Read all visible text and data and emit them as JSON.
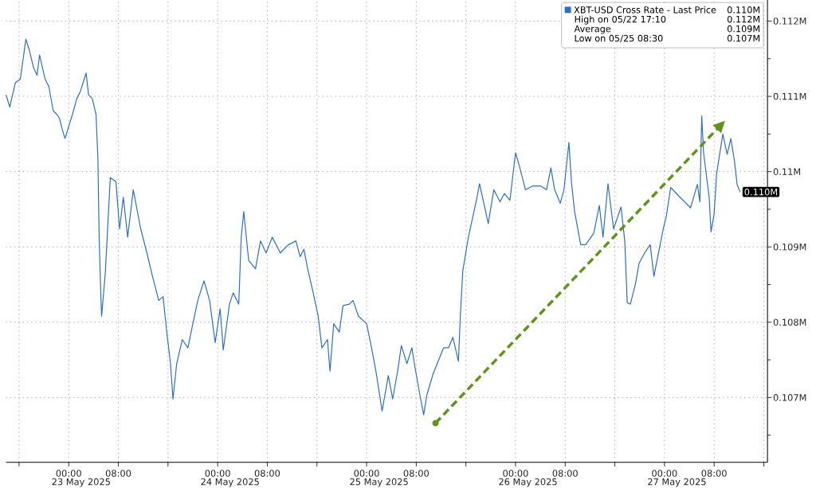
{
  "chart_data": {
    "type": "line",
    "series": [
      {
        "name": "XBT-USD Cross Rate - Last Price",
        "color": "#2a70c8",
        "x": [
          "2025-05-22T13:54",
          "2025-05-22T14:30",
          "2025-05-22T15:24",
          "2025-05-22T16:12",
          "2025-05-22T17:06",
          "2025-05-22T17:42",
          "2025-05-22T18:18",
          "2025-05-22T18:54",
          "2025-05-22T19:18",
          "2025-05-22T20:12",
          "2025-05-22T20:48",
          "2025-05-22T21:30",
          "2025-05-22T22:06",
          "2025-05-22T22:30",
          "2025-05-22T23:00",
          "2025-05-22T23:24",
          "2025-05-23T00:00",
          "2025-05-23T00:36",
          "2025-05-23T01:18",
          "2025-05-23T01:54",
          "2025-05-23T02:48",
          "2025-05-23T03:12",
          "2025-05-23T03:48",
          "2025-05-23T04:24",
          "2025-05-23T04:42",
          "2025-05-23T04:54",
          "2025-05-23T05:12",
          "2025-05-23T05:18",
          "2025-05-23T05:54",
          "2025-05-23T06:42",
          "2025-05-23T07:36",
          "2025-05-23T08:12",
          "2025-05-23T08:48",
          "2025-05-23T09:30",
          "2025-05-23T10:24",
          "2025-05-23T11:36",
          "2025-05-23T12:36",
          "2025-05-23T13:30",
          "2025-05-23T14:30",
          "2025-05-23T15:12",
          "2025-05-23T15:48",
          "2025-05-23T16:24",
          "2025-05-23T16:48",
          "2025-05-23T17:24",
          "2025-05-23T18:18",
          "2025-05-23T19:12",
          "2025-05-23T20:00",
          "2025-05-23T20:48",
          "2025-05-23T21:48",
          "2025-05-23T22:42",
          "2025-05-23T23:36",
          "2025-05-24T00:24",
          "2025-05-24T00:54",
          "2025-05-24T01:54",
          "2025-05-24T02:30",
          "2025-05-24T03:24",
          "2025-05-24T03:48",
          "2025-05-24T04:12",
          "2025-05-24T05:00",
          "2025-05-24T06:06",
          "2025-05-24T06:54",
          "2025-05-24T07:48",
          "2025-05-24T08:48",
          "2025-05-24T10:06",
          "2025-05-24T11:24",
          "2025-05-24T12:36",
          "2025-05-24T13:18",
          "2025-05-24T13:54",
          "2025-05-24T14:30",
          "2025-05-24T15:24",
          "2025-05-24T16:12",
          "2025-05-24T16:48",
          "2025-05-24T17:42",
          "2025-05-24T18:06",
          "2025-05-24T18:42",
          "2025-05-24T19:36",
          "2025-05-24T20:12",
          "2025-05-24T21:12",
          "2025-05-24T21:48",
          "2025-05-24T22:42",
          "2025-05-25T00:00",
          "2025-05-25T00:48",
          "2025-05-25T01:30",
          "2025-05-25T02:30",
          "2025-05-25T03:30",
          "2025-05-25T04:12",
          "2025-05-25T05:00",
          "2025-05-25T05:36",
          "2025-05-25T06:30",
          "2025-05-25T07:18",
          "2025-05-25T07:48",
          "2025-05-25T08:36",
          "2025-05-25T09:12",
          "2025-05-25T09:42",
          "2025-05-25T10:42",
          "2025-05-25T12:24",
          "2025-05-25T13:12",
          "2025-05-25T13:54",
          "2025-05-25T14:48",
          "2025-05-25T15:06",
          "2025-05-25T15:30",
          "2025-05-25T16:24",
          "2025-05-25T17:42",
          "2025-05-25T18:12",
          "2025-05-25T19:36",
          "2025-05-25T20:30",
          "2025-05-25T21:30",
          "2025-05-25T22:12",
          "2025-05-25T23:06",
          "2025-05-26T00:00",
          "2025-05-26T00:36",
          "2025-05-26T01:36",
          "2025-05-26T02:48",
          "2025-05-26T04:00",
          "2025-05-26T05:00",
          "2025-05-26T05:42",
          "2025-05-26T06:18",
          "2025-05-26T07:12",
          "2025-05-26T07:48",
          "2025-05-26T08:36",
          "2025-05-26T09:00",
          "2025-05-26T09:30",
          "2025-05-26T10:30",
          "2025-05-26T11:18",
          "2025-05-26T12:36",
          "2025-05-26T13:30",
          "2025-05-26T14:06",
          "2025-05-26T14:54",
          "2025-05-26T15:48",
          "2025-05-26T17:00",
          "2025-05-26T17:36",
          "2025-05-26T18:00",
          "2025-05-26T18:30",
          "2025-05-26T19:18",
          "2025-05-26T19:54",
          "2025-05-26T20:48",
          "2025-05-26T21:42",
          "2025-05-26T22:18",
          "2025-05-26T23:18",
          "2025-05-26T23:48",
          "2025-05-27T00:18",
          "2025-05-27T01:00",
          "2025-05-27T02:30",
          "2025-05-27T04:12",
          "2025-05-27T05:18",
          "2025-05-27T05:42",
          "2025-05-27T06:00",
          "2025-05-27T06:18",
          "2025-05-27T07:12",
          "2025-05-27T07:30",
          "2025-05-27T08:00",
          "2025-05-27T08:24",
          "2025-05-27T09:24",
          "2025-05-27T10:06",
          "2025-05-27T10:42",
          "2025-05-27T11:18",
          "2025-05-27T11:42",
          "2025-05-27T12:12"
        ],
        "values": [
          0.11102,
          0.11086,
          0.11118,
          0.11123,
          0.11176,
          0.1116,
          0.11139,
          0.11128,
          0.11155,
          0.11123,
          0.11113,
          0.11081,
          0.11076,
          0.11071,
          0.11055,
          0.11044,
          0.1106,
          0.11076,
          0.11097,
          0.11107,
          0.11131,
          0.11102,
          0.11097,
          0.11076,
          0.11018,
          0.10913,
          0.10829,
          0.10808,
          0.10866,
          0.10992,
          0.10987,
          0.10924,
          0.10966,
          0.10913,
          0.10976,
          0.10924,
          0.10892,
          0.10861,
          0.10829,
          0.10834,
          0.10787,
          0.10745,
          0.10698,
          0.10745,
          0.10777,
          0.10766,
          0.10798,
          0.10829,
          0.10855,
          0.10829,
          0.10773,
          0.10818,
          0.10763,
          0.10824,
          0.10839,
          0.10824,
          0.10913,
          0.10947,
          0.10882,
          0.10871,
          0.10908,
          0.10892,
          0.10913,
          0.10892,
          0.10903,
          0.10908,
          0.10887,
          0.10897,
          0.10871,
          0.10839,
          0.10808,
          0.10766,
          0.10777,
          0.10735,
          0.10798,
          0.10787,
          0.10822,
          0.10824,
          0.10829,
          0.10808,
          0.10798,
          0.10766,
          0.10735,
          0.10682,
          0.10729,
          0.10698,
          0.10735,
          0.10769,
          0.10745,
          0.10766,
          0.1074,
          0.10703,
          0.10677,
          0.10703,
          0.10731,
          0.10766,
          0.10766,
          0.1078,
          0.10748,
          0.10808,
          0.10868,
          0.10913,
          0.10962,
          0.10984,
          0.10931,
          0.10976,
          0.1096,
          0.10971,
          0.10962,
          0.11025,
          0.11008,
          0.10976,
          0.10981,
          0.10981,
          0.10976,
          0.11005,
          0.10976,
          0.10958,
          0.10976,
          0.11039,
          0.10987,
          0.10948,
          0.10903,
          0.10903,
          0.10918,
          0.10955,
          0.10913,
          0.10984,
          0.10924,
          0.10953,
          0.10908,
          0.10826,
          0.10824,
          0.1085,
          0.10878,
          0.10892,
          0.10903,
          0.10861,
          0.10903,
          0.10924,
          0.10941,
          0.10979,
          0.10966,
          0.10952,
          0.10983,
          0.1096,
          0.11074,
          0.11025,
          0.10966,
          0.1092,
          0.10944,
          0.10997,
          0.1105,
          0.11023,
          0.11044,
          0.11013,
          0.10983,
          0.10973
        ],
        "value_labels": [
          null,
          null,
          null,
          null,
          null,
          null,
          null,
          null,
          null,
          null,
          null,
          null,
          null,
          null,
          null,
          null,
          null,
          null,
          null,
          null,
          null,
          null,
          null,
          null,
          null,
          null,
          null,
          null,
          null,
          null,
          null,
          null,
          null,
          null,
          null,
          null,
          null,
          null,
          null,
          null,
          null,
          null,
          null,
          null,
          null,
          null,
          null,
          null,
          null,
          null,
          null,
          null,
          null,
          null,
          null,
          null,
          null,
          null,
          null,
          null,
          null,
          null,
          null,
          null,
          null,
          null,
          null,
          null,
          null,
          null,
          null,
          null,
          null,
          null,
          null,
          null,
          null,
          null,
          null,
          null,
          null,
          null,
          null,
          null,
          null,
          null,
          null,
          null,
          null,
          null,
          null,
          null,
          null,
          null,
          null,
          null,
          null,
          null,
          null,
          null,
          null,
          null,
          null,
          null,
          null,
          null,
          null,
          null,
          null,
          null,
          null,
          null,
          null,
          null,
          null,
          null,
          null,
          null,
          null,
          null,
          null,
          null,
          null,
          null,
          null,
          null,
          null,
          null,
          null,
          null,
          null,
          null,
          null,
          null,
          null,
          null,
          null,
          null,
          null,
          null,
          null,
          null,
          null,
          null,
          null,
          null,
          null,
          null,
          null,
          null,
          null,
          null,
          null,
          null,
          null,
          null,
          null,
          "0.110M"
        ]
      },
      {
        "type": "line",
        "color": "#5f9419",
        "line_style": "dashed",
        "marker": "circle",
        "x": [
          "2025-05-25T11:06",
          "2025-05-27T09:06"
        ],
        "values": [
          0.10666,
          0.11062
        ]
      }
    ],
    "xlim": [
      "2025-05-22T13:54",
      "2025-05-27T16:36"
    ],
    "ylim": [
      0.10614,
      0.11228
    ],
    "xticks": [
      {
        "value": "2025-05-22T16:00",
        "label": null
      },
      {
        "value": "2025-05-23T00:00",
        "label": "00:00"
      },
      {
        "value": "2025-05-23T08:00",
        "label": "08:00"
      },
      {
        "value": "2025-05-23T16:00",
        "label": null
      },
      {
        "value": "2025-05-24T00:00",
        "label": "00:00"
      },
      {
        "value": "2025-05-24T08:00",
        "label": "08:00"
      },
      {
        "value": "2025-05-24T16:00",
        "label": null
      },
      {
        "value": "2025-05-25T00:00",
        "label": "00:00"
      },
      {
        "value": "2025-05-25T08:00",
        "label": "08:00"
      },
      {
        "value": "2025-05-25T16:00",
        "label": null
      },
      {
        "value": "2025-05-26T00:00",
        "label": "00:00"
      },
      {
        "value": "2025-05-26T08:00",
        "label": "08:00"
      },
      {
        "value": "2025-05-26T16:00",
        "label": null
      },
      {
        "value": "2025-05-27T00:00",
        "label": "00:00"
      },
      {
        "value": "2025-05-27T08:00",
        "label": "08:00"
      },
      {
        "value": "2025-05-27T16:00",
        "label": null
      }
    ],
    "yticks": [
      {
        "value": 0.1065,
        "label": null
      },
      {
        "value": 0.107,
        "label": "0.107M"
      },
      {
        "value": 0.1075,
        "label": null
      },
      {
        "value": 0.108,
        "label": "0.108M"
      },
      {
        "value": 0.1085,
        "label": null
      },
      {
        "value": 0.109,
        "label": "0.109M"
      },
      {
        "value": 0.1095,
        "label": null
      },
      {
        "value": 0.11,
        "label": "0.11M"
      },
      {
        "value": 0.1105,
        "label": null
      },
      {
        "value": 0.111,
        "label": "0.111M"
      },
      {
        "value": 0.1115,
        "label": null
      },
      {
        "value": 0.112,
        "label": "0.112M"
      }
    ],
    "grid": true,
    "legend": "top right",
    "annotations": [
      "0.110M",
      "High on 05/22 17:10",
      "0.112M",
      "Average",
      "0.109M",
      "Low on 05/25 08:30",
      "0.107M",
      "23 May 2025",
      "24 May 2025",
      "25 May 2025",
      "26 May 2025",
      "27 May 2025"
    ]
  }
}
